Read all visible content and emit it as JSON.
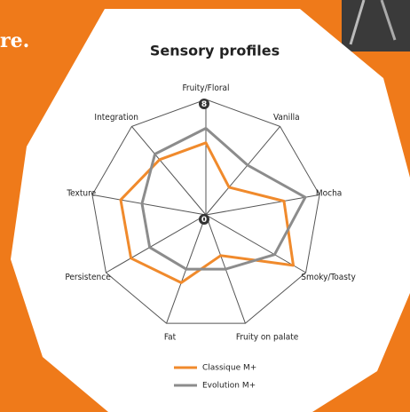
{
  "background_text": "re.",
  "chart_data": {
    "type": "radar",
    "title": "Sensory profiles",
    "categories": [
      "Fruity/Floral",
      "Vanilla",
      "Mocha",
      "Smoky/Toasty",
      "Fruity on palate",
      "Fat",
      "Persistence",
      "Texture",
      "Integration"
    ],
    "series": [
      {
        "name": "Classique M+",
        "color": "#f08a2c",
        "values": [
          5,
          2.5,
          5.5,
          7,
          3,
          5,
          6,
          6,
          5
        ]
      },
      {
        "name": "Evolution M+",
        "color": "#8c8c8c",
        "values": [
          6,
          4.5,
          7,
          5.5,
          4,
          4,
          4.5,
          4.5,
          5.5
        ]
      }
    ],
    "ylim": [
      0,
      8
    ],
    "yticks": [
      0,
      8
    ],
    "grid": true,
    "legend": "bottom"
  }
}
